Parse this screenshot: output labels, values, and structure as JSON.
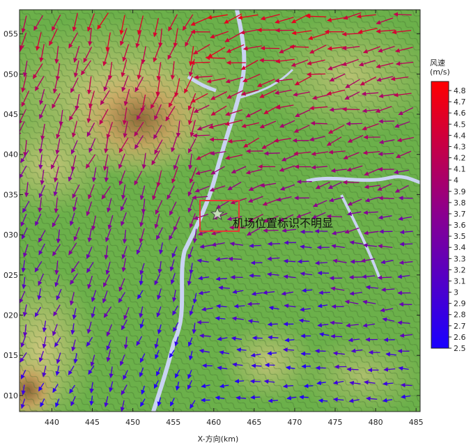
{
  "x_axis": {
    "title": "X-方向(km)",
    "ticks": [
      "440",
      "445",
      "450",
      "455",
      "460",
      "465",
      "470",
      "475",
      "480",
      "485"
    ],
    "range": [
      436,
      485.5
    ]
  },
  "y_axis": {
    "ticks": [
      "010",
      "015",
      "020",
      "025",
      "030",
      "035",
      "040",
      "045",
      "050",
      "055"
    ],
    "range": [
      3008,
      3058
    ]
  },
  "legend": {
    "title_line1": "风速",
    "title_line2": "(m/s)",
    "min": 2.5,
    "max": 4.8,
    "ticks": [
      "4.8",
      "4.7",
      "4.6",
      "4.5",
      "4.4",
      "4.3",
      "4.2",
      "4.1",
      "4",
      "3.9",
      "3.8",
      "3.7",
      "3.6",
      "3.5",
      "3.4",
      "3.3",
      "3.2",
      "3.1",
      "3",
      "2.9",
      "2.8",
      "2.7",
      "2.6",
      "2.5"
    ],
    "colors": {
      "low": "#1a00ff",
      "mid": "#8a0090",
      "high": "#ff0000"
    }
  },
  "annotation": {
    "text": "机场位置标识不明显",
    "box_color": "#e53935"
  },
  "marker": {
    "icon": "star-icon",
    "x_km": 460.5,
    "y_km": 3033.5
  },
  "terrain": {
    "lowland": "#6bb04a",
    "hill": "#c9c477",
    "mountain": "#9b6b3b",
    "river": "#c9d3f2"
  }
}
